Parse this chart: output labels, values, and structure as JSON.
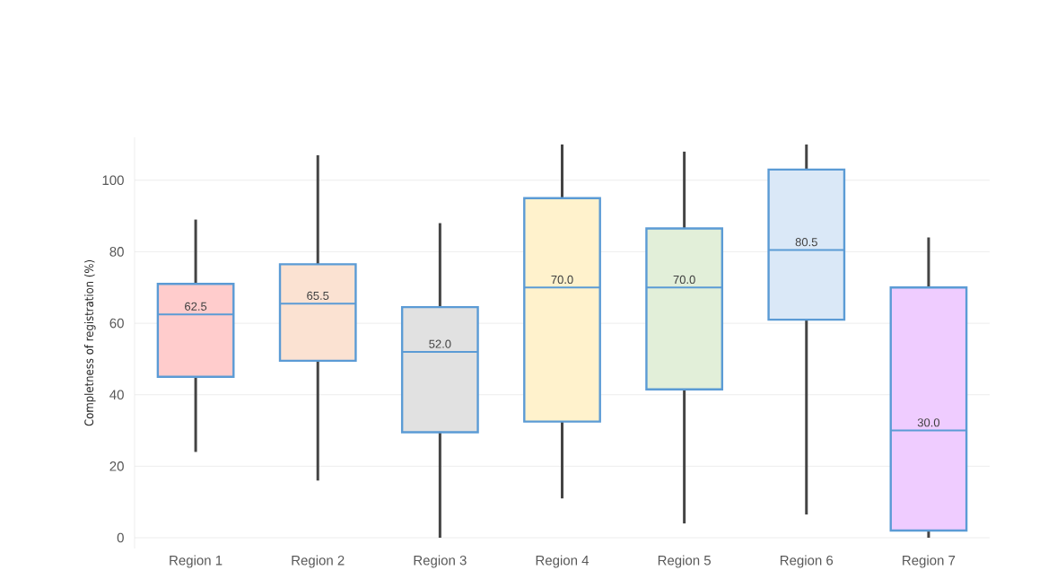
{
  "chart_data": {
    "type": "box",
    "ylabel": "Completness of registration (%)",
    "categories": [
      "Region 1",
      "Region 2",
      "Region 3",
      "Region 4",
      "Region 5",
      "Region 6",
      "Region 7"
    ],
    "boxes": [
      {
        "low": 24,
        "q1": 45,
        "median": 62.5,
        "q3": 71,
        "high": 89
      },
      {
        "low": 16,
        "q1": 49.5,
        "median": 65.5,
        "q3": 76.5,
        "high": 107
      },
      {
        "low": 0,
        "q1": 29.5,
        "median": 52,
        "q3": 64.5,
        "high": 88
      },
      {
        "low": 11,
        "q1": 32.5,
        "median": 70,
        "q3": 95,
        "high": 110
      },
      {
        "low": 4,
        "q1": 41.5,
        "median": 70,
        "q3": 86.5,
        "high": 108
      },
      {
        "low": 6.5,
        "q1": 61,
        "median": 80.5,
        "q3": 103,
        "high": 110
      },
      {
        "low": 0,
        "q1": 2,
        "median": 30,
        "q3": 70,
        "high": 84
      }
    ],
    "colors": [
      "#ffcccc",
      "#fbe2d2",
      "#e1e1e1",
      "#fff2cc",
      "#e2efd9",
      "#dae8f7",
      "#efccff"
    ],
    "value_labels": [
      "62.5",
      "65.5",
      "52.0",
      "70.0",
      "70.0",
      "80.5",
      "30.0"
    ],
    "ylim": [
      -3,
      112
    ],
    "yticks": [
      0,
      20,
      40,
      60,
      80,
      100
    ],
    "grid": "y"
  }
}
